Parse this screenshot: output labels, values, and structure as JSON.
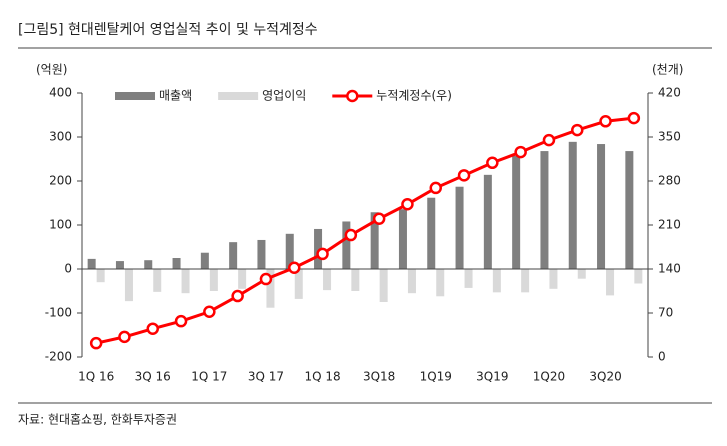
{
  "chart_data": {
    "type": "bar",
    "title": "[그림5]   현대렌탈케어 영업실적 추이 및 누적계정수",
    "y_unit": "(억원)",
    "y2_unit": "(천개)",
    "source": "자료: 현대홈쇼핑, 한화투자증권",
    "categories": [
      "1Q 16",
      null,
      "3Q 16",
      null,
      "1Q 17",
      null,
      "3Q 17",
      null,
      "1Q 18",
      null,
      "3Q18",
      null,
      "1Q19",
      null,
      "3Q19",
      null,
      "1Q20",
      null,
      "3Q20",
      null
    ],
    "series": [
      {
        "name": "매출액",
        "type": "bar",
        "color": "#7f7f7f",
        "values": [
          23,
          18,
          20,
          25,
          37,
          61,
          66,
          80,
          91,
          108,
          129,
          136,
          162,
          187,
          214,
          257,
          268,
          289,
          284,
          268
        ]
      },
      {
        "name": "영업이익",
        "type": "bar",
        "color": "#d9d9d9",
        "values": [
          -30,
          -73,
          -52,
          -55,
          -50,
          -45,
          -88,
          -68,
          -48,
          -50,
          -75,
          -55,
          -62,
          -43,
          -53,
          -53,
          -45,
          -22,
          -60,
          -33
        ]
      },
      {
        "name": "누적계정수(우)",
        "type": "line",
        "axis": "y2",
        "color": "#ff0000",
        "values": [
          22,
          32,
          45,
          57,
          72,
          97,
          124,
          142,
          164,
          194,
          220,
          243,
          269,
          289,
          309,
          326,
          345,
          361,
          375,
          380
        ]
      }
    ],
    "ylim": [
      -200,
      400
    ],
    "yticks": [
      -200,
      -100,
      0,
      100,
      200,
      300,
      400
    ],
    "y2lim": [
      0,
      420
    ],
    "y2ticks": [
      0,
      70,
      140,
      210,
      280,
      350,
      420
    ],
    "legend": "top"
  }
}
